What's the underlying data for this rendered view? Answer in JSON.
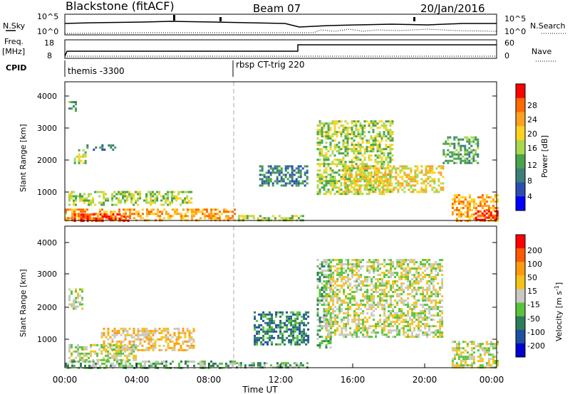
{
  "header": {
    "title": "Blackstone (fitACF)",
    "beam": "Beam 07",
    "date": "20/Jan/2016"
  },
  "summary": {
    "nsky_label": "N.Sky",
    "nsky_ticks": [
      "10^5",
      "10^0"
    ],
    "nsearch_label": "N.Search",
    "nsearch_ticks": [
      "10^5",
      "10^0"
    ],
    "freq_label_line1": "Freq.",
    "freq_label_line2": "[MHz]",
    "freq_ticks": [
      "18",
      "8"
    ],
    "nave_label": "Nave",
    "nave_ticks": [
      "60",
      "0"
    ],
    "cpid_label": "CPID",
    "cpid_segments": [
      {
        "label": "themis -3300",
        "start_hour": 0.0
      },
      {
        "label": "rbsp CT-trig 220",
        "start_hour": 9.5
      }
    ]
  },
  "chart_data": [
    {
      "type": "heatmap",
      "name": "power",
      "ylabel": "Slant Range [km]",
      "yticks": [
        "4000",
        "3000",
        "2000",
        "1000"
      ],
      "colorbar_label": "Power [dB]",
      "colorbar_ticks": [
        "28",
        "24",
        "20",
        "16",
        "12",
        "8",
        "4"
      ],
      "colorbar_colors": [
        "#0000ff",
        "#2a4fb0",
        "#3b7f7a",
        "#49a449",
        "#a6d94e",
        "#ffd21f",
        "#ffa020",
        "#ff6a00",
        "#ff0000"
      ],
      "x_range_hours": [
        0,
        24
      ],
      "y_range_km": [
        180,
        4500
      ],
      "regions": [
        {
          "t0": 0.2,
          "t1": 0.6,
          "r0": 3600,
          "r1": 3900,
          "level": 3
        },
        {
          "t0": 0.5,
          "t1": 1.2,
          "r0": 2000,
          "r1": 2400,
          "level": 4
        },
        {
          "t0": 1.2,
          "t1": 2.8,
          "r0": 2400,
          "r1": 2550,
          "level": 2
        },
        {
          "t0": 0.2,
          "t1": 7.0,
          "r0": 700,
          "r1": 1100,
          "level": 4
        },
        {
          "t0": 0.0,
          "t1": 9.5,
          "r0": 200,
          "r1": 550,
          "level": 6
        },
        {
          "t0": 0.5,
          "t1": 3.5,
          "r0": 200,
          "r1": 400,
          "level": 8
        },
        {
          "t0": 9.5,
          "t1": 13.2,
          "r0": 200,
          "r1": 350,
          "level": 4
        },
        {
          "t0": 10.8,
          "t1": 13.5,
          "r0": 1300,
          "r1": 1900,
          "level": 2
        },
        {
          "t0": 14.0,
          "t1": 18.2,
          "r0": 1000,
          "r1": 3300,
          "level": 4
        },
        {
          "t0": 15.5,
          "t1": 21.0,
          "r0": 1100,
          "r1": 1900,
          "level": 5
        },
        {
          "t0": 21.0,
          "t1": 23.0,
          "r0": 2000,
          "r1": 2800,
          "level": 3
        },
        {
          "t0": 21.5,
          "t1": 24.0,
          "r0": 200,
          "r1": 1000,
          "level": 6
        },
        {
          "t0": 22.8,
          "t1": 24.0,
          "r0": 200,
          "r1": 500,
          "level": 8
        }
      ]
    },
    {
      "type": "heatmap",
      "name": "velocity",
      "ylabel": "Slant Range [km]",
      "yticks": [
        "4000",
        "3000",
        "2000",
        "1000"
      ],
      "colorbar_label": "Velocity [m s",
      "colorbar_label_sup": "-1",
      "colorbar_ticks": [
        "200",
        "100",
        "50",
        "15",
        "-15",
        "-50",
        "-100",
        "-200"
      ],
      "colorbar_colors": [
        "#0000d0",
        "#1f4fa0",
        "#2e7d5a",
        "#58c43a",
        "#c9c9c2",
        "#f5c21a",
        "#ff9a10",
        "#ff5a00",
        "#ff0000"
      ],
      "x_range_hours": [
        0,
        24
      ],
      "y_range_km": [
        180,
        4500
      ],
      "xticks": [
        "00:00",
        "04:00",
        "08:00",
        "12:00",
        "16:00",
        "20:00",
        "00:00"
      ],
      "xlabel": "Time UT",
      "regions": [
        {
          "t0": 0.2,
          "t1": 1.0,
          "r0": 2000,
          "r1": 2600,
          "level": 4
        },
        {
          "t0": 2.0,
          "t1": 7.2,
          "r0": 700,
          "r1": 1400,
          "level": 5
        },
        {
          "t0": 0.2,
          "t1": 4.0,
          "r0": 400,
          "r1": 900,
          "level": 4
        },
        {
          "t0": 0.0,
          "t1": 9.5,
          "r0": 200,
          "r1": 400,
          "level": 3
        },
        {
          "t0": 9.5,
          "t1": 13.5,
          "r0": 200,
          "r1": 350,
          "level": 3
        },
        {
          "t0": 10.5,
          "t1": 13.5,
          "r0": 900,
          "r1": 1900,
          "level": 2
        },
        {
          "t0": 14.0,
          "t1": 14.8,
          "r0": 800,
          "r1": 3500,
          "level": 3
        },
        {
          "t0": 14.5,
          "t1": 21.0,
          "r0": 1100,
          "r1": 3500,
          "level": 4
        },
        {
          "t0": 21.5,
          "t1": 24.0,
          "r0": 200,
          "r1": 1000,
          "level": 4
        }
      ]
    }
  ]
}
